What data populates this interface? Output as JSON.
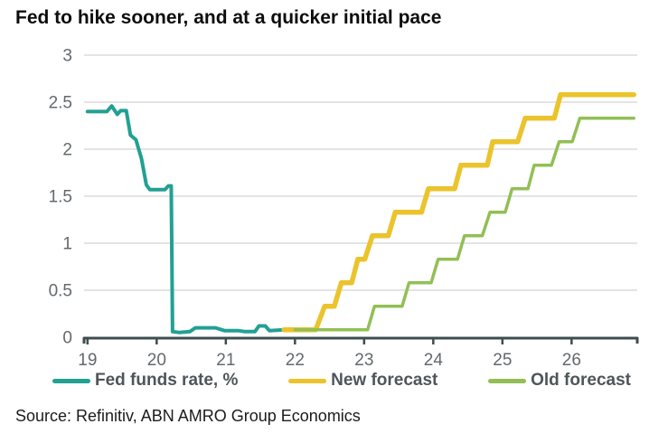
{
  "title": "Fed to hike sooner, and at a quicker initial pace",
  "source": "Source: Refinitiv, ABN AMRO Group Economics",
  "legend": {
    "items": [
      {
        "label": "Fed funds rate, %",
        "color": "#22a093"
      },
      {
        "label": "New forecast",
        "color": "#ebc32c"
      },
      {
        "label": "Old forecast",
        "color": "#92bf55"
      }
    ]
  },
  "axis_style": {
    "axis_color": "#3f4d4f",
    "gridline_color": "#dcdcdc",
    "tick_label_color": "#64696d"
  },
  "chart_data": {
    "type": "line",
    "title": "Fed to hike sooner, and at a quicker initial pace",
    "xlabel": "",
    "ylabel": "",
    "x_ticks": [
      19,
      20,
      21,
      22,
      23,
      24,
      25,
      26
    ],
    "y_ticks": [
      0,
      0.5,
      1,
      1.5,
      2,
      2.5,
      3
    ],
    "xlim": [
      18.95,
      26.95
    ],
    "ylim": [
      0,
      3
    ],
    "grid": "horizontal",
    "legend_position": "bottom",
    "series": [
      {
        "name": "Fed funds rate, %",
        "color": "#22a093",
        "stroke_width": 4,
        "points": [
          [
            19.0,
            2.4
          ],
          [
            19.28,
            2.4
          ],
          [
            19.35,
            2.46
          ],
          [
            19.43,
            2.37
          ],
          [
            19.48,
            2.41
          ],
          [
            19.56,
            2.41
          ],
          [
            19.62,
            2.15
          ],
          [
            19.7,
            2.1
          ],
          [
            19.78,
            1.9
          ],
          [
            19.85,
            1.62
          ],
          [
            19.9,
            1.57
          ],
          [
            20.12,
            1.57
          ],
          [
            20.17,
            1.61
          ],
          [
            20.21,
            1.61
          ],
          [
            20.23,
            0.06
          ],
          [
            20.33,
            0.05
          ],
          [
            20.48,
            0.06
          ],
          [
            20.56,
            0.1
          ],
          [
            20.85,
            0.1
          ],
          [
            20.98,
            0.07
          ],
          [
            21.18,
            0.07
          ],
          [
            21.28,
            0.06
          ],
          [
            21.42,
            0.06
          ],
          [
            21.48,
            0.12
          ],
          [
            21.57,
            0.12
          ],
          [
            21.63,
            0.07
          ],
          [
            21.85,
            0.08
          ]
        ]
      },
      {
        "name": "New forecast",
        "color": "#ebc32c",
        "stroke_width": 5.5,
        "points": [
          [
            21.84,
            0.08
          ],
          [
            22.3,
            0.08
          ],
          [
            22.43,
            0.33
          ],
          [
            22.57,
            0.33
          ],
          [
            22.67,
            0.58
          ],
          [
            22.82,
            0.58
          ],
          [
            22.91,
            0.83
          ],
          [
            23.01,
            0.83
          ],
          [
            23.12,
            1.08
          ],
          [
            23.35,
            1.08
          ],
          [
            23.45,
            1.33
          ],
          [
            23.83,
            1.33
          ],
          [
            23.93,
            1.58
          ],
          [
            24.31,
            1.58
          ],
          [
            24.4,
            1.83
          ],
          [
            24.78,
            1.83
          ],
          [
            24.86,
            2.08
          ],
          [
            25.22,
            2.08
          ],
          [
            25.33,
            2.33
          ],
          [
            25.75,
            2.33
          ],
          [
            25.84,
            2.58
          ],
          [
            26.9,
            2.58
          ]
        ]
      },
      {
        "name": "Old forecast",
        "color": "#92bf55",
        "stroke_width": 3.5,
        "points": [
          [
            22.0,
            0.08
          ],
          [
            23.05,
            0.08
          ],
          [
            23.15,
            0.33
          ],
          [
            23.55,
            0.33
          ],
          [
            23.65,
            0.58
          ],
          [
            23.97,
            0.58
          ],
          [
            24.07,
            0.83
          ],
          [
            24.35,
            0.83
          ],
          [
            24.45,
            1.08
          ],
          [
            24.71,
            1.08
          ],
          [
            24.82,
            1.33
          ],
          [
            25.04,
            1.33
          ],
          [
            25.14,
            1.58
          ],
          [
            25.37,
            1.58
          ],
          [
            25.46,
            1.83
          ],
          [
            25.71,
            1.83
          ],
          [
            25.82,
            2.08
          ],
          [
            26.01,
            2.08
          ],
          [
            26.12,
            2.33
          ],
          [
            26.9,
            2.33
          ]
        ]
      }
    ]
  }
}
